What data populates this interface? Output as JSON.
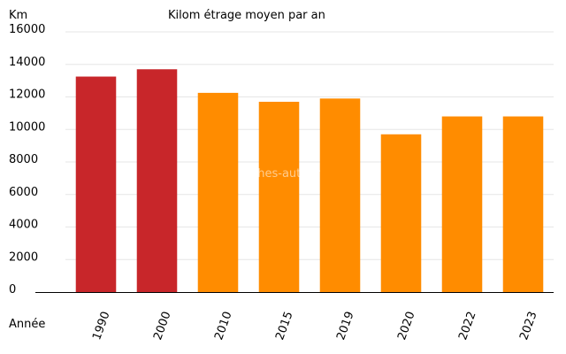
{
  "chart_data": {
    "type": "bar",
    "title": "Kilom étrage moyen par an",
    "ylabel": "Km",
    "xlabel": "Année",
    "watermark": "Fiches-auto.fr",
    "ylim": [
      0,
      16000
    ],
    "yticks": [
      0,
      2000,
      4000,
      6000,
      8000,
      10000,
      12000,
      14000,
      16000
    ],
    "grid": true,
    "categories": [
      "1990",
      "2000",
      "2010",
      "2015",
      "2019",
      "2020",
      "2022",
      "2023"
    ],
    "values": [
      13250,
      13700,
      12250,
      11700,
      11900,
      9700,
      10800,
      10800
    ],
    "colors": [
      "#c8262a",
      "#c8262a",
      "#ff8c00",
      "#ff8c00",
      "#ff8c00",
      "#ff8c00",
      "#ff8c00",
      "#ff8c00"
    ]
  }
}
